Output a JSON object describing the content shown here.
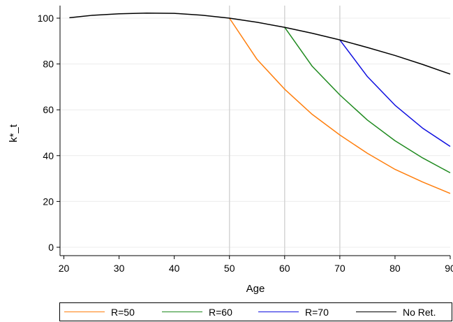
{
  "chart_data": {
    "type": "line",
    "xlabel": "Age",
    "ylabel": "k*_t",
    "xlim": [
      20,
      90
    ],
    "ylim": [
      0,
      100
    ],
    "xticks": [
      20,
      30,
      40,
      50,
      60,
      70,
      80,
      90
    ],
    "xtick_labels": [
      "20",
      "30",
      "40",
      "50",
      "60",
      "70",
      "80",
      "90"
    ],
    "yticks": [
      0,
      20,
      40,
      60,
      80,
      100
    ],
    "ytick_labels": [
      "0",
      "20",
      "40",
      "60",
      "80",
      "100"
    ],
    "vlines": [
      50,
      60,
      70
    ],
    "grid": true,
    "legend_position": "bottom",
    "series": [
      {
        "name": "R=50",
        "color": "#ff7f0e",
        "x": [
          50,
          55,
          60,
          65,
          70,
          75,
          80,
          85,
          90
        ],
        "y": [
          100,
          82,
          69,
          58,
          49,
          41,
          34,
          28.5,
          23.5
        ]
      },
      {
        "name": "R=60",
        "color": "#1f8a1f",
        "x": [
          60,
          65,
          70,
          75,
          80,
          85,
          90
        ],
        "y": [
          96,
          79,
          66.5,
          55.5,
          46.5,
          39,
          32.5
        ]
      },
      {
        "name": "R=70",
        "color": "#1010e0",
        "x": [
          70,
          75,
          80,
          85,
          90
        ],
        "y": [
          90.5,
          74.5,
          62,
          52,
          44
        ]
      },
      {
        "name": "No Ret.",
        "color": "#000000",
        "x": [
          21,
          25,
          30,
          35,
          40,
          45,
          50,
          55,
          60,
          65,
          70,
          75,
          80,
          85,
          90
        ],
        "y": [
          100.2,
          101.2,
          101.9,
          102.2,
          102.1,
          101.3,
          100,
          98.2,
          96,
          93.4,
          90.5,
          87.2,
          83.7,
          79.8,
          75.6
        ]
      }
    ]
  }
}
